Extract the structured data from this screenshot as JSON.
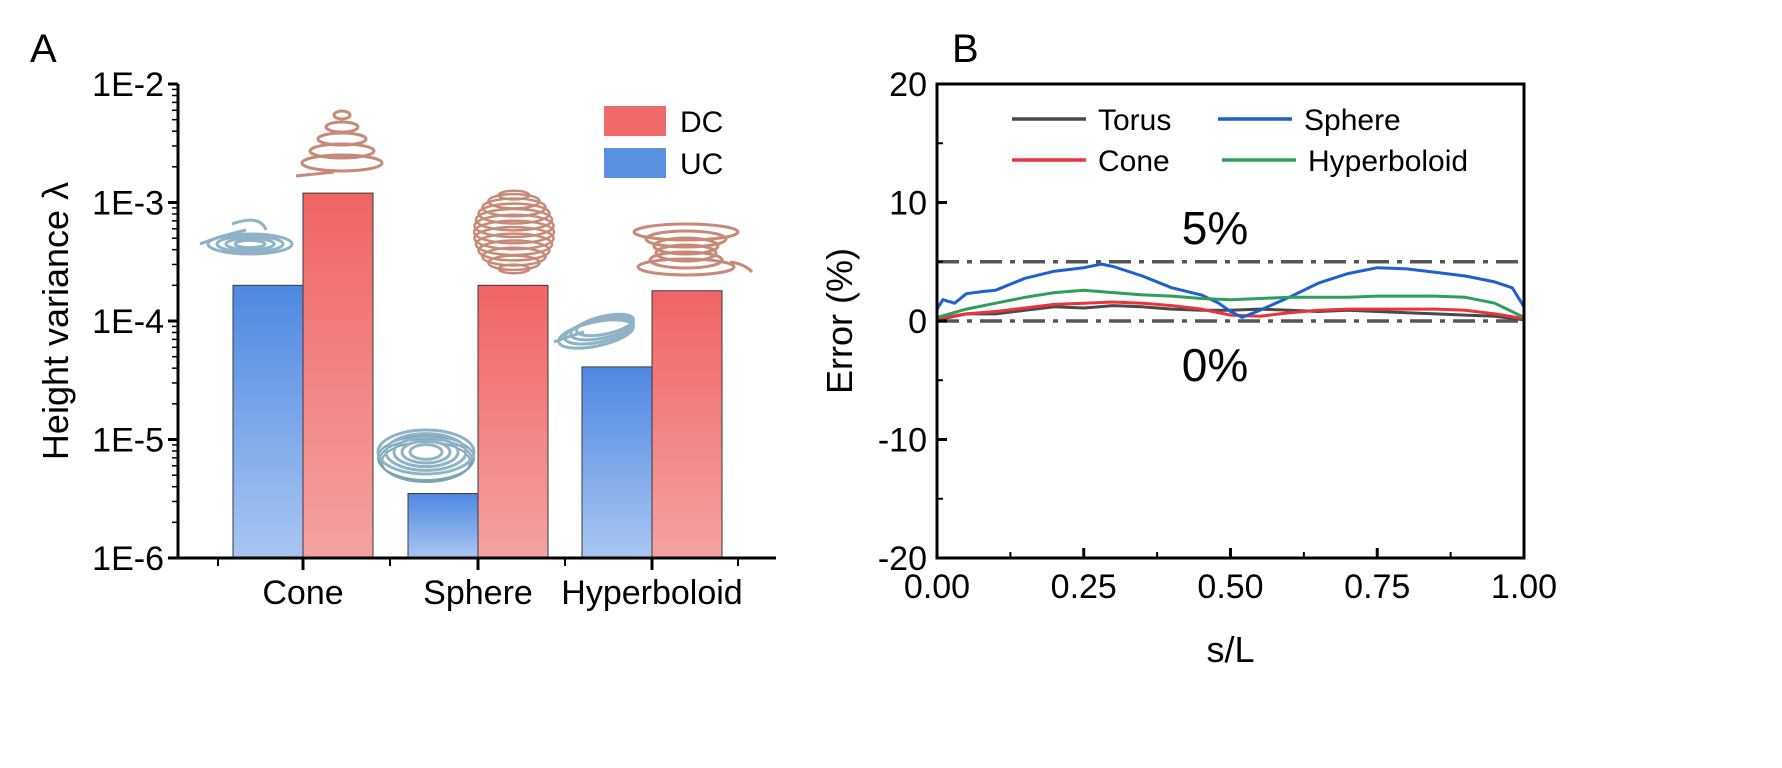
{
  "chart_data": [
    {
      "panel": "A",
      "type": "bar",
      "ylabel": "Height variance λ",
      "xlabel": "",
      "yscale": "log",
      "ylim": [
        1e-06,
        0.01
      ],
      "yticks": [
        "1E-6",
        "1E-5",
        "1E-4",
        "1E-3",
        "1E-2"
      ],
      "categories": [
        "Cone",
        "Sphere",
        "Hyperboloid"
      ],
      "series": [
        {
          "name": "UC",
          "color": "#5b8fe0",
          "values": [
            0.0002,
            3.5e-06,
            4.1e-05
          ]
        },
        {
          "name": "DC",
          "color": "#f06a6a",
          "values": [
            0.0012,
            0.0002,
            0.00018
          ]
        }
      ],
      "legend_position": "top-right",
      "decorations": "helical coil illustrations drawn above each bar"
    },
    {
      "panel": "B",
      "type": "line",
      "xlabel": "s/L",
      "ylabel": "Error (%)",
      "xlim": [
        0,
        1
      ],
      "ylim": [
        -20,
        20
      ],
      "xticks": [
        "0.00",
        "0.25",
        "0.50",
        "0.75",
        "1.00"
      ],
      "yticks": [
        "-20",
        "-10",
        "0",
        "10",
        "20"
      ],
      "reference_lines": [
        {
          "y": 5,
          "label": "5%"
        },
        {
          "y": 0,
          "label": "0%"
        }
      ],
      "legend_position": "top",
      "series": [
        {
          "name": "Torus",
          "color": "#4a4a4a",
          "x": [
            0,
            0.05,
            0.1,
            0.15,
            0.2,
            0.25,
            0.3,
            0.35,
            0.4,
            0.45,
            0.5,
            0.55,
            0.6,
            0.65,
            0.7,
            0.75,
            0.8,
            0.85,
            0.9,
            0.95,
            1.0
          ],
          "y": [
            0.1,
            0.6,
            0.6,
            0.9,
            1.2,
            1.1,
            1.3,
            1.2,
            1.0,
            0.9,
            0.9,
            1.0,
            0.9,
            0.8,
            0.9,
            0.8,
            0.7,
            0.6,
            0.5,
            0.4,
            0.1
          ]
        },
        {
          "name": "Cone",
          "color": "#e8343a",
          "x": [
            0,
            0.05,
            0.1,
            0.15,
            0.2,
            0.25,
            0.3,
            0.35,
            0.4,
            0.45,
            0.5,
            0.55,
            0.6,
            0.65,
            0.7,
            0.75,
            0.8,
            0.85,
            0.9,
            0.95,
            1.0
          ],
          "y": [
            0.2,
            0.6,
            0.8,
            1.1,
            1.4,
            1.5,
            1.6,
            1.5,
            1.3,
            1.0,
            0.5,
            0.4,
            0.7,
            0.9,
            1.0,
            1.0,
            1.0,
            1.0,
            0.9,
            0.6,
            0.2
          ]
        },
        {
          "name": "Sphere",
          "color": "#1f5fd0",
          "x": [
            0,
            0.01,
            0.03,
            0.05,
            0.08,
            0.1,
            0.15,
            0.2,
            0.25,
            0.28,
            0.3,
            0.35,
            0.4,
            0.45,
            0.48,
            0.5,
            0.52,
            0.55,
            0.6,
            0.65,
            0.7,
            0.75,
            0.8,
            0.85,
            0.9,
            0.95,
            0.98,
            1.0
          ],
          "y": [
            1.0,
            1.8,
            1.5,
            2.3,
            2.5,
            2.6,
            3.6,
            4.2,
            4.5,
            4.8,
            4.6,
            3.8,
            2.8,
            2.2,
            1.5,
            0.8,
            0.3,
            0.9,
            2.0,
            3.2,
            4.0,
            4.5,
            4.4,
            4.1,
            3.8,
            3.3,
            2.8,
            1.2
          ]
        },
        {
          "name": "Hyperboloid",
          "color": "#2e9e5b",
          "x": [
            0,
            0.05,
            0.1,
            0.15,
            0.2,
            0.25,
            0.3,
            0.35,
            0.4,
            0.45,
            0.5,
            0.55,
            0.6,
            0.65,
            0.7,
            0.75,
            0.8,
            0.85,
            0.9,
            0.95,
            1.0
          ],
          "y": [
            0.3,
            1.0,
            1.5,
            2.0,
            2.4,
            2.6,
            2.4,
            2.2,
            2.1,
            1.9,
            1.8,
            1.9,
            2.0,
            2.0,
            2.0,
            2.1,
            2.1,
            2.1,
            2.0,
            1.5,
            0.3
          ]
        }
      ]
    }
  ]
}
